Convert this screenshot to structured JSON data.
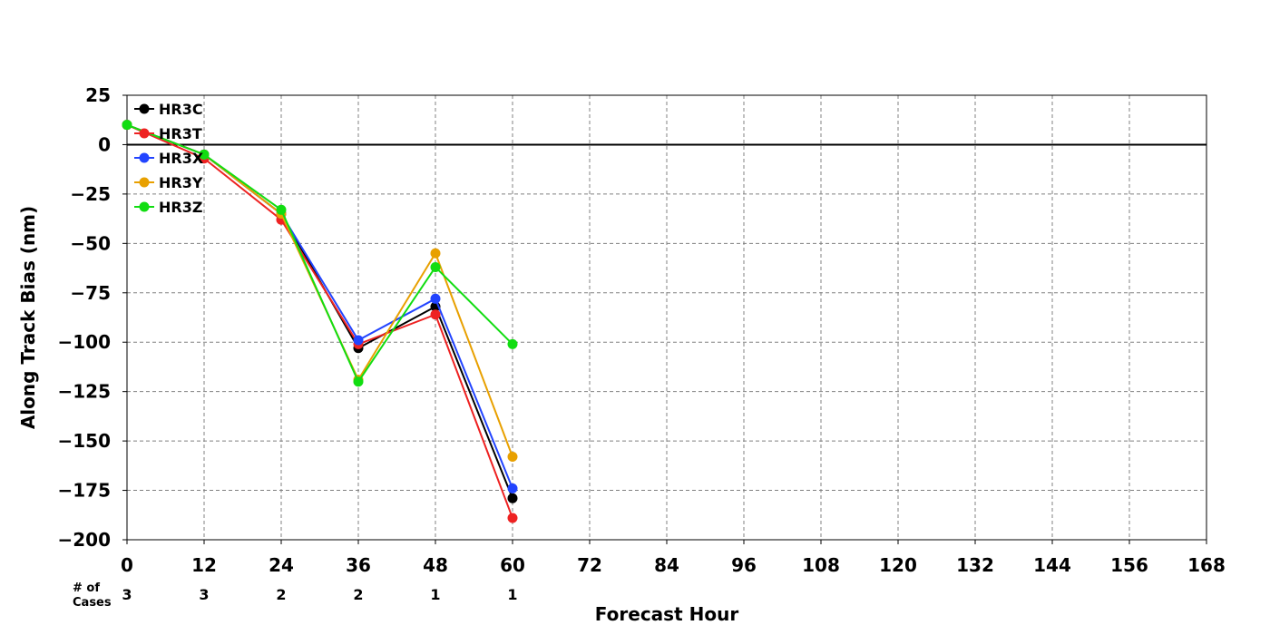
{
  "chart_data": {
    "type": "line",
    "xlabel": "Forecast Hour",
    "ylabel": "Along Track Bias (nm)",
    "xlim": [
      0,
      168
    ],
    "ylim": [
      -200,
      25
    ],
    "x_ticks": [
      0,
      12,
      24,
      36,
      48,
      60,
      72,
      84,
      96,
      108,
      120,
      132,
      144,
      156,
      168
    ],
    "y_ticks": [
      25,
      0,
      -25,
      -50,
      -75,
      -100,
      -125,
      -150,
      -175,
      -200
    ],
    "y_tick_labels": [
      "25",
      "0",
      "−25",
      "−50",
      "−75",
      "−100",
      "−125",
      "−150",
      "−175",
      "−200"
    ],
    "grid": true,
    "legend_position": "top-left",
    "cases_label_line1": "# of",
    "cases_label_line2": "Cases",
    "cases": [
      {
        "x": 0,
        "n": "3"
      },
      {
        "x": 12,
        "n": "3"
      },
      {
        "x": 24,
        "n": "2"
      },
      {
        "x": 36,
        "n": "2"
      },
      {
        "x": 48,
        "n": "1"
      },
      {
        "x": 60,
        "n": "1"
      }
    ],
    "x": [
      0,
      12,
      24,
      36,
      48,
      60
    ],
    "series": [
      {
        "name": "HR3C",
        "color": "#000000",
        "values": [
          10,
          -5,
          -35,
          -103,
          -82,
          -179
        ]
      },
      {
        "name": "HR3T",
        "color": "#ee2222",
        "values": [
          10,
          -7,
          -38,
          -101,
          -86,
          -189
        ]
      },
      {
        "name": "HR3X",
        "color": "#2244ff",
        "values": [
          10,
          -5,
          -35,
          -99,
          -78,
          -174
        ]
      },
      {
        "name": "HR3Y",
        "color": "#e8a000",
        "values": [
          10,
          -5,
          -35,
          -119,
          -55,
          -158
        ]
      },
      {
        "name": "HR3Z",
        "color": "#11dd11",
        "values": [
          10,
          -5,
          -33,
          -120,
          -62,
          -101
        ]
      }
    ]
  }
}
